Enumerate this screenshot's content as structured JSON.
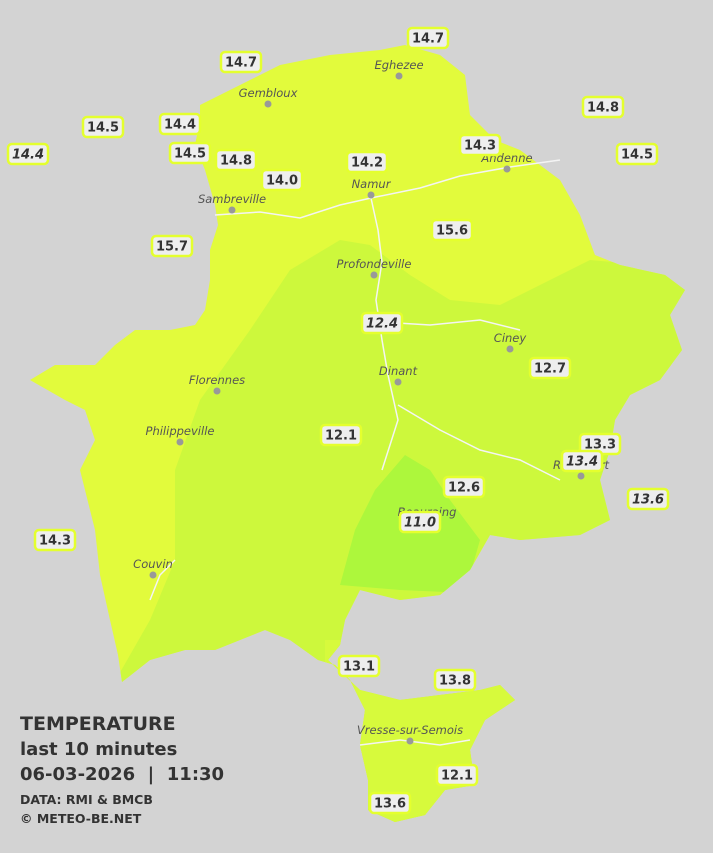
{
  "legend": {
    "title": "TEMPERATURE",
    "subtitle": "last 10 minutes",
    "timestamp": "06-03-2026  |  11:30",
    "source": "DATA: RMI & BMCB",
    "credit": "© METEO-BE.NET"
  },
  "cities": [
    "Eghezee",
    "Gembloux",
    "Andenne",
    "Namur",
    "Sambreville",
    "Profondeville",
    "Ciney",
    "Dinant",
    "Florennes",
    "Philippeville",
    "Rochefort",
    "Beauraing",
    "Couvin",
    "Vresse-sur-Semois"
  ],
  "stations": [
    {
      "label": "14.7",
      "italic": false
    },
    {
      "label": "14.7",
      "italic": false
    },
    {
      "label": "14.5",
      "italic": false
    },
    {
      "label": "14.4",
      "italic": false
    },
    {
      "label": "14.8",
      "italic": false
    },
    {
      "label": "14.4",
      "italic": true
    },
    {
      "label": "14.5",
      "italic": false
    },
    {
      "label": "14.8",
      "italic": false
    },
    {
      "label": "14.0",
      "italic": false
    },
    {
      "label": "14.2",
      "italic": false
    },
    {
      "label": "14.3",
      "italic": false
    },
    {
      "label": "14.5",
      "italic": false
    },
    {
      "label": "15.6",
      "italic": false
    },
    {
      "label": "15.7",
      "italic": false
    },
    {
      "label": "12.4",
      "italic": true
    },
    {
      "label": "12.7",
      "italic": false
    },
    {
      "label": "12.1",
      "italic": false
    },
    {
      "label": "13.3",
      "italic": false
    },
    {
      "label": "13.4",
      "italic": true
    },
    {
      "label": "13.6",
      "italic": true
    },
    {
      "label": "12.6",
      "italic": false
    },
    {
      "label": "11.0",
      "italic": true
    },
    {
      "label": "14.3",
      "italic": false
    },
    {
      "label": "13.1",
      "italic": false
    },
    {
      "label": "13.8",
      "italic": false
    },
    {
      "label": "12.1",
      "italic": false
    },
    {
      "label": "13.6",
      "italic": false
    }
  ]
}
